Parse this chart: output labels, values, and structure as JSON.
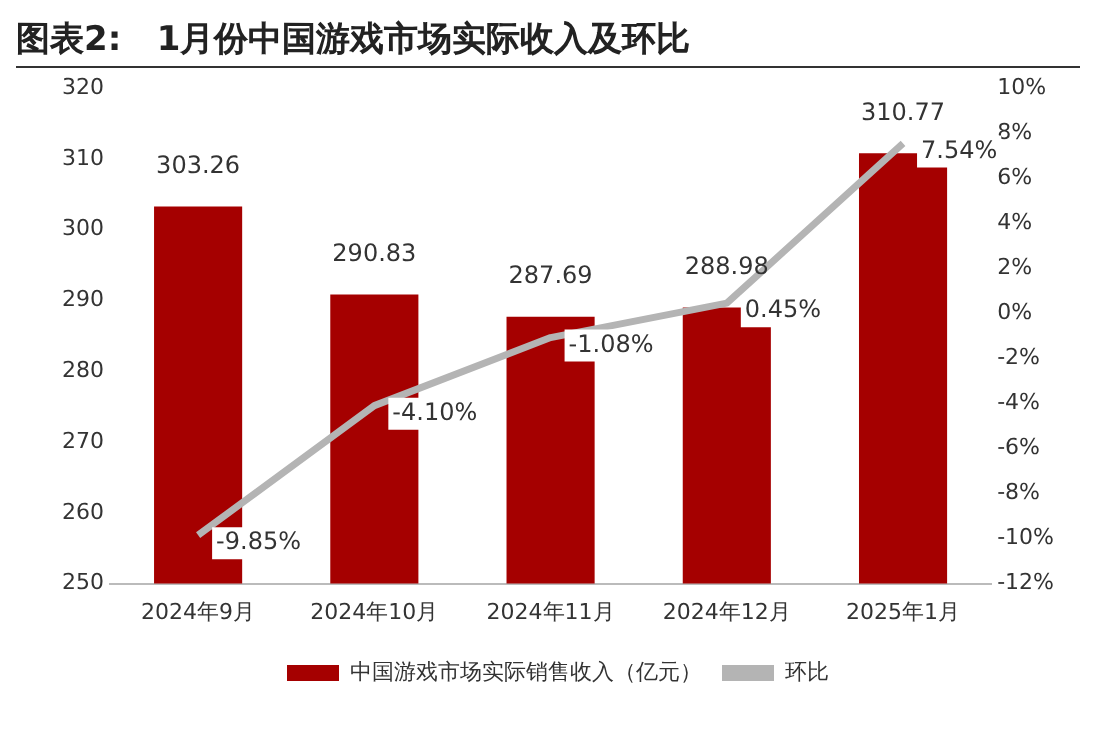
{
  "chart_data": {
    "type": "bar",
    "title": "图表2:   1月份中国游戏市场实际收入及环比",
    "categories": [
      "2024年9月",
      "2024年10月",
      "2024年11月",
      "2024年12月",
      "2025年1月"
    ],
    "series": [
      {
        "name": "中国游戏市场实际销售收入（亿元）",
        "color": "#a50000",
        "values": [
          303.26,
          290.83,
          287.69,
          288.98,
          310.77
        ],
        "value_labels": [
          "303.26",
          "290.83",
          "287.69",
          "288.98",
          "310.77"
        ]
      },
      {
        "name": "环比",
        "type": "line",
        "axis": "y2",
        "color": "#b4b4b4",
        "values": [
          -9.85,
          -4.1,
          -1.08,
          0.45,
          7.54
        ],
        "value_labels": [
          "-9.85%",
          "-4.10%",
          "-1.08%",
          "0.45%",
          "7.54%"
        ]
      }
    ],
    "ylim": [
      250,
      320
    ],
    "yticks": [
      250,
      260,
      270,
      280,
      290,
      300,
      310,
      320
    ],
    "y2lim": [
      -12,
      10
    ],
    "y2ticks": [
      {
        "value": -12,
        "label": "-12%"
      },
      {
        "value": -10,
        "label": "-10%"
      },
      {
        "value": -8,
        "label": "-8%"
      },
      {
        "value": -6,
        "label": "-6%"
      },
      {
        "value": -4,
        "label": "-4%"
      },
      {
        "value": -2,
        "label": "-2%"
      },
      {
        "value": 0,
        "label": "0%"
      },
      {
        "value": 2,
        "label": "2%"
      },
      {
        "value": 4,
        "label": "4%"
      },
      {
        "value": 6,
        "label": "6%"
      },
      {
        "value": 8,
        "label": "8%"
      },
      {
        "value": 10,
        "label": "10%"
      }
    ],
    "grid": false,
    "legend": "bottom",
    "marker": "none",
    "line_style": "solid"
  }
}
